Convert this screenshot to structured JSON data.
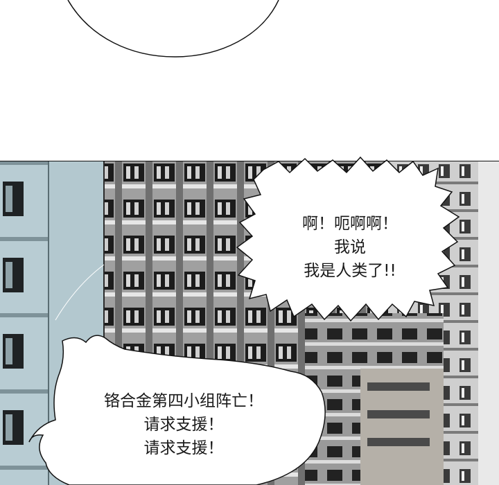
{
  "bubbles": {
    "upper": {
      "lines": [
        "啊！呃啊啊！",
        "我说",
        "我是人类了!!"
      ]
    },
    "lower": {
      "lines": [
        "铬合金第四小组阵亡！",
        "请求支援！",
        "请求支援！"
      ]
    }
  },
  "colors": {
    "page_background": "#ffffff",
    "building_left": "#b7cbd2",
    "building_mid": "#8d8d8d",
    "ink": "#111111"
  }
}
